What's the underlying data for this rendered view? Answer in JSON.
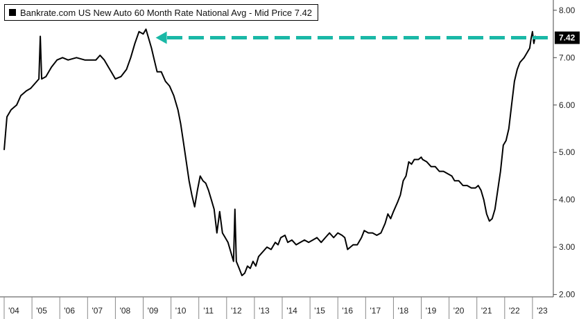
{
  "legend": {
    "swatch_color": "#000000",
    "label": "Bankrate.com US New Auto 60 Month Rate National Avg - Mid Price 7.42"
  },
  "chart_data": {
    "type": "line",
    "title": "",
    "xlabel": "",
    "ylabel": "",
    "x_ticks": [
      "'04",
      "'05",
      "'06",
      "'07",
      "'08",
      "'09",
      "'10",
      "'11",
      "'12",
      "'13",
      "'14",
      "'15",
      "'16",
      "'17",
      "'18",
      "'19",
      "'20",
      "'21",
      "'22",
      "'23"
    ],
    "y_ticks": [
      "2.00",
      "3.00",
      "4.00",
      "5.00",
      "6.00",
      "7.00",
      "8.00"
    ],
    "xlim": [
      2004.0,
      2023.75
    ],
    "ylim": [
      1.95,
      8.1
    ],
    "grid": false,
    "last_value_label": "7.42",
    "last_value_color": "#000000",
    "annotation": {
      "type": "dashed-arrow",
      "color": "#1ab8a6",
      "from_x": 2023.55,
      "to_x": 2009.45,
      "y": 7.42
    },
    "series": [
      {
        "line_color": "#000000",
        "points": [
          [
            2004.0,
            5.05
          ],
          [
            2004.1,
            5.75
          ],
          [
            2004.25,
            5.9
          ],
          [
            2004.45,
            6.0
          ],
          [
            2004.6,
            6.2
          ],
          [
            2004.8,
            6.3
          ],
          [
            2004.95,
            6.35
          ],
          [
            2005.1,
            6.45
          ],
          [
            2005.25,
            6.55
          ],
          [
            2005.3,
            7.45
          ],
          [
            2005.35,
            6.55
          ],
          [
            2005.5,
            6.6
          ],
          [
            2005.7,
            6.8
          ],
          [
            2005.9,
            6.95
          ],
          [
            2006.1,
            7.0
          ],
          [
            2006.3,
            6.95
          ],
          [
            2006.6,
            7.0
          ],
          [
            2006.9,
            6.95
          ],
          [
            2007.1,
            6.95
          ],
          [
            2007.3,
            6.95
          ],
          [
            2007.45,
            7.05
          ],
          [
            2007.6,
            6.95
          ],
          [
            2007.75,
            6.8
          ],
          [
            2007.85,
            6.7
          ],
          [
            2008.0,
            6.55
          ],
          [
            2008.2,
            6.6
          ],
          [
            2008.4,
            6.75
          ],
          [
            2008.55,
            7.0
          ],
          [
            2008.7,
            7.3
          ],
          [
            2008.85,
            7.55
          ],
          [
            2009.0,
            7.5
          ],
          [
            2009.1,
            7.6
          ],
          [
            2009.2,
            7.4
          ],
          [
            2009.3,
            7.2
          ],
          [
            2009.4,
            6.95
          ],
          [
            2009.5,
            6.7
          ],
          [
            2009.65,
            6.7
          ],
          [
            2009.8,
            6.5
          ],
          [
            2009.95,
            6.4
          ],
          [
            2010.1,
            6.2
          ],
          [
            2010.25,
            5.9
          ],
          [
            2010.35,
            5.6
          ],
          [
            2010.45,
            5.2
          ],
          [
            2010.55,
            4.8
          ],
          [
            2010.65,
            4.4
          ],
          [
            2010.75,
            4.1
          ],
          [
            2010.85,
            3.85
          ],
          [
            2010.95,
            4.2
          ],
          [
            2011.05,
            4.5
          ],
          [
            2011.15,
            4.4
          ],
          [
            2011.25,
            4.35
          ],
          [
            2011.35,
            4.2
          ],
          [
            2011.45,
            4.0
          ],
          [
            2011.55,
            3.8
          ],
          [
            2011.65,
            3.3
          ],
          [
            2011.75,
            3.75
          ],
          [
            2011.85,
            3.3
          ],
          [
            2011.95,
            3.2
          ],
          [
            2012.05,
            3.1
          ],
          [
            2012.15,
            2.9
          ],
          [
            2012.25,
            2.7
          ],
          [
            2012.3,
            3.8
          ],
          [
            2012.35,
            2.7
          ],
          [
            2012.45,
            2.55
          ],
          [
            2012.55,
            2.4
          ],
          [
            2012.65,
            2.45
          ],
          [
            2012.75,
            2.6
          ],
          [
            2012.85,
            2.55
          ],
          [
            2012.95,
            2.7
          ],
          [
            2013.05,
            2.6
          ],
          [
            2013.15,
            2.8
          ],
          [
            2013.3,
            2.9
          ],
          [
            2013.45,
            3.0
          ],
          [
            2013.6,
            2.95
          ],
          [
            2013.75,
            3.1
          ],
          [
            2013.85,
            3.05
          ],
          [
            2013.95,
            3.2
          ],
          [
            2014.1,
            3.25
          ],
          [
            2014.2,
            3.1
          ],
          [
            2014.35,
            3.15
          ],
          [
            2014.5,
            3.05
          ],
          [
            2014.65,
            3.1
          ],
          [
            2014.8,
            3.15
          ],
          [
            2014.95,
            3.1
          ],
          [
            2015.1,
            3.15
          ],
          [
            2015.25,
            3.2
          ],
          [
            2015.4,
            3.1
          ],
          [
            2015.55,
            3.2
          ],
          [
            2015.7,
            3.3
          ],
          [
            2015.85,
            3.2
          ],
          [
            2016.0,
            3.3
          ],
          [
            2016.15,
            3.25
          ],
          [
            2016.25,
            3.2
          ],
          [
            2016.35,
            2.95
          ],
          [
            2016.45,
            3.0
          ],
          [
            2016.55,
            3.05
          ],
          [
            2016.7,
            3.05
          ],
          [
            2016.85,
            3.2
          ],
          [
            2016.95,
            3.35
          ],
          [
            2017.1,
            3.3
          ],
          [
            2017.25,
            3.3
          ],
          [
            2017.4,
            3.25
          ],
          [
            2017.55,
            3.3
          ],
          [
            2017.7,
            3.5
          ],
          [
            2017.8,
            3.7
          ],
          [
            2017.9,
            3.6
          ],
          [
            2018.0,
            3.75
          ],
          [
            2018.15,
            3.95
          ],
          [
            2018.25,
            4.1
          ],
          [
            2018.35,
            4.4
          ],
          [
            2018.45,
            4.5
          ],
          [
            2018.55,
            4.8
          ],
          [
            2018.65,
            4.75
          ],
          [
            2018.75,
            4.85
          ],
          [
            2018.9,
            4.85
          ],
          [
            2019.0,
            4.9
          ],
          [
            2019.05,
            4.85
          ],
          [
            2019.2,
            4.8
          ],
          [
            2019.35,
            4.7
          ],
          [
            2019.5,
            4.7
          ],
          [
            2019.65,
            4.6
          ],
          [
            2019.8,
            4.6
          ],
          [
            2019.95,
            4.55
          ],
          [
            2020.1,
            4.5
          ],
          [
            2020.2,
            4.4
          ],
          [
            2020.35,
            4.4
          ],
          [
            2020.5,
            4.3
          ],
          [
            2020.65,
            4.3
          ],
          [
            2020.8,
            4.25
          ],
          [
            2020.95,
            4.25
          ],
          [
            2021.05,
            4.3
          ],
          [
            2021.15,
            4.2
          ],
          [
            2021.25,
            4.0
          ],
          [
            2021.35,
            3.7
          ],
          [
            2021.45,
            3.55
          ],
          [
            2021.55,
            3.6
          ],
          [
            2021.65,
            3.8
          ],
          [
            2021.75,
            4.2
          ],
          [
            2021.85,
            4.6
          ],
          [
            2021.95,
            5.15
          ],
          [
            2022.05,
            5.25
          ],
          [
            2022.15,
            5.5
          ],
          [
            2022.25,
            6.0
          ],
          [
            2022.35,
            6.5
          ],
          [
            2022.45,
            6.75
          ],
          [
            2022.55,
            6.9
          ],
          [
            2022.7,
            7.0
          ],
          [
            2022.8,
            7.1
          ],
          [
            2022.9,
            7.2
          ],
          [
            2022.95,
            7.4
          ],
          [
            2023.0,
            7.55
          ],
          [
            2023.05,
            7.3
          ],
          [
            2023.1,
            7.45
          ],
          [
            2023.15,
            7.4
          ],
          [
            2023.2,
            7.42
          ]
        ]
      }
    ]
  }
}
